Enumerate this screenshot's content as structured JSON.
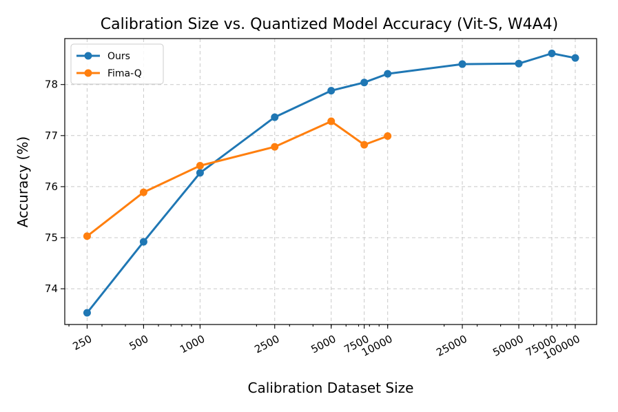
{
  "chart_data": {
    "type": "line",
    "title": "Calibration Size vs. Quantized Model Accuracy (Vit-S, W4A4)",
    "xlabel": "Calibration Dataset Size",
    "ylabel": "Accuracy (%)",
    "xscale": "log",
    "x_ticks": [
      250,
      500,
      1000,
      2500,
      5000,
      7500,
      10000,
      25000,
      50000,
      75000,
      100000
    ],
    "x_tick_labels": [
      "250",
      "500",
      "1000",
      "2500",
      "5000",
      "7500",
      "10000",
      "25000",
      "50000",
      "75000",
      "100000"
    ],
    "y_ticks": [
      74,
      75,
      76,
      77,
      78
    ],
    "y_tick_labels": [
      "74",
      "75",
      "76",
      "77",
      "78"
    ],
    "xlim": [
      190,
      130000
    ],
    "ylim": [
      73.3,
      78.9
    ],
    "grid": true,
    "legend_position": "upper-left",
    "series": [
      {
        "name": "Ours",
        "color": "#1f77b4",
        "x": [
          250,
          500,
          1000,
          2500,
          5000,
          7500,
          10000,
          25000,
          50000,
          75000,
          100000
        ],
        "y": [
          73.53,
          74.92,
          76.27,
          77.36,
          77.88,
          78.04,
          78.21,
          78.4,
          78.41,
          78.61,
          78.52
        ]
      },
      {
        "name": "Fima-Q",
        "color": "#ff7f0e",
        "x": [
          250,
          500,
          1000,
          2500,
          5000,
          7500,
          10000
        ],
        "y": [
          75.03,
          75.89,
          76.41,
          76.78,
          77.28,
          76.82,
          76.99
        ]
      }
    ]
  }
}
